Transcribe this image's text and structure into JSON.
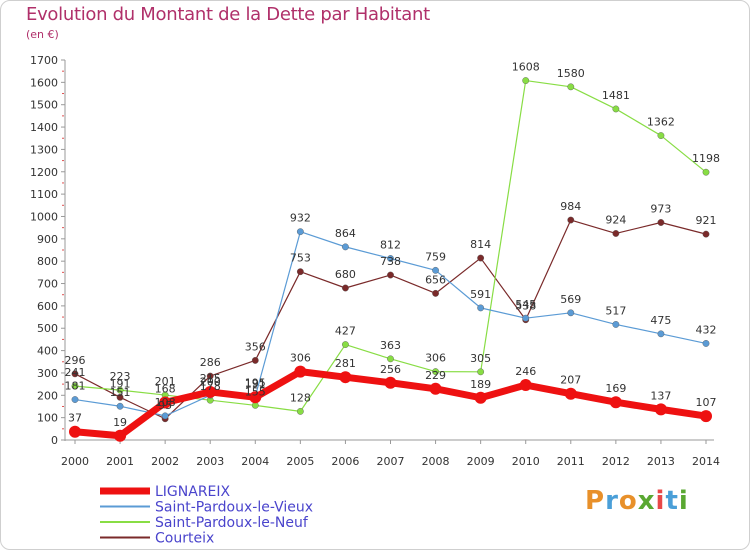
{
  "header": {
    "title": "Evolution du Montant de la Dette par Habitant",
    "subtitle": "(en €)"
  },
  "logo": {
    "text": "Proxiti",
    "colors": [
      "#e8902a",
      "#4a9fd8",
      "#e8902a",
      "#5aa832",
      "#e84848",
      "#4a9fd8",
      "#5aa832"
    ]
  },
  "chart_data": {
    "type": "line",
    "title": "Evolution du Montant de la Dette par Habitant",
    "ylabel": "(en €)",
    "xlabel": "",
    "x": [
      "2000",
      "2001",
      "2002",
      "2003",
      "2004",
      "2005",
      "2006",
      "2007",
      "2008",
      "2009",
      "2010",
      "2011",
      "2012",
      "2013",
      "2014"
    ],
    "ylim": [
      0,
      1700
    ],
    "yticks": [
      0,
      100,
      200,
      300,
      400,
      500,
      600,
      700,
      800,
      900,
      1000,
      1100,
      1200,
      1300,
      1400,
      1500,
      1600,
      1700
    ],
    "grid": false,
    "legend_position": "bottom-left",
    "series": [
      {
        "name": "LIGNAREIX",
        "color": "#ee1111",
        "values": [
          37,
          19,
          168,
          215,
          191,
          306,
          281,
          256,
          229,
          189,
          246,
          207,
          169,
          137,
          107
        ],
        "labels": [
          "37",
          "19",
          "168",
          "215",
          "191",
          "306",
          "281",
          "256",
          "229",
          "189",
          "246",
          "207",
          "169",
          "137",
          "107"
        ]
      },
      {
        "name": "Saint-Pardoux-le-Vieux",
        "color": "#5b9bd5",
        "values": [
          181,
          151,
          108,
          200,
          195,
          932,
          864,
          812,
          759,
          591,
          545,
          569,
          517,
          475,
          432
        ],
        "labels": [
          "181",
          "151",
          "108",
          "200",
          "195",
          "932",
          "864",
          "812",
          "759",
          "591",
          "545",
          "569",
          "517",
          "475",
          "432"
        ]
      },
      {
        "name": "Saint-Pardoux-le-Neuf",
        "color": "#88dd44",
        "values": [
          241,
          223,
          201,
          178,
          155,
          128,
          427,
          363,
          306,
          305,
          1608,
          1580,
          1481,
          1362,
          1198
        ],
        "labels": [
          "241",
          "223",
          "201",
          "178",
          "155",
          "128",
          "427",
          "363",
          "306",
          "305",
          "1608",
          "1580",
          "1481",
          "1362",
          "1198"
        ]
      },
      {
        "name": "Courteix",
        "color": "#7a2a2a",
        "values": [
          296,
          191,
          95,
          286,
          356,
          753,
          680,
          738,
          656,
          814,
          538,
          984,
          924,
          973,
          921
        ],
        "labels": [
          "296",
          "191",
          "95",
          "286",
          "356",
          "753",
          "680",
          "738",
          "656",
          "814",
          "538",
          "984",
          "924",
          "973",
          "921"
        ]
      }
    ]
  }
}
